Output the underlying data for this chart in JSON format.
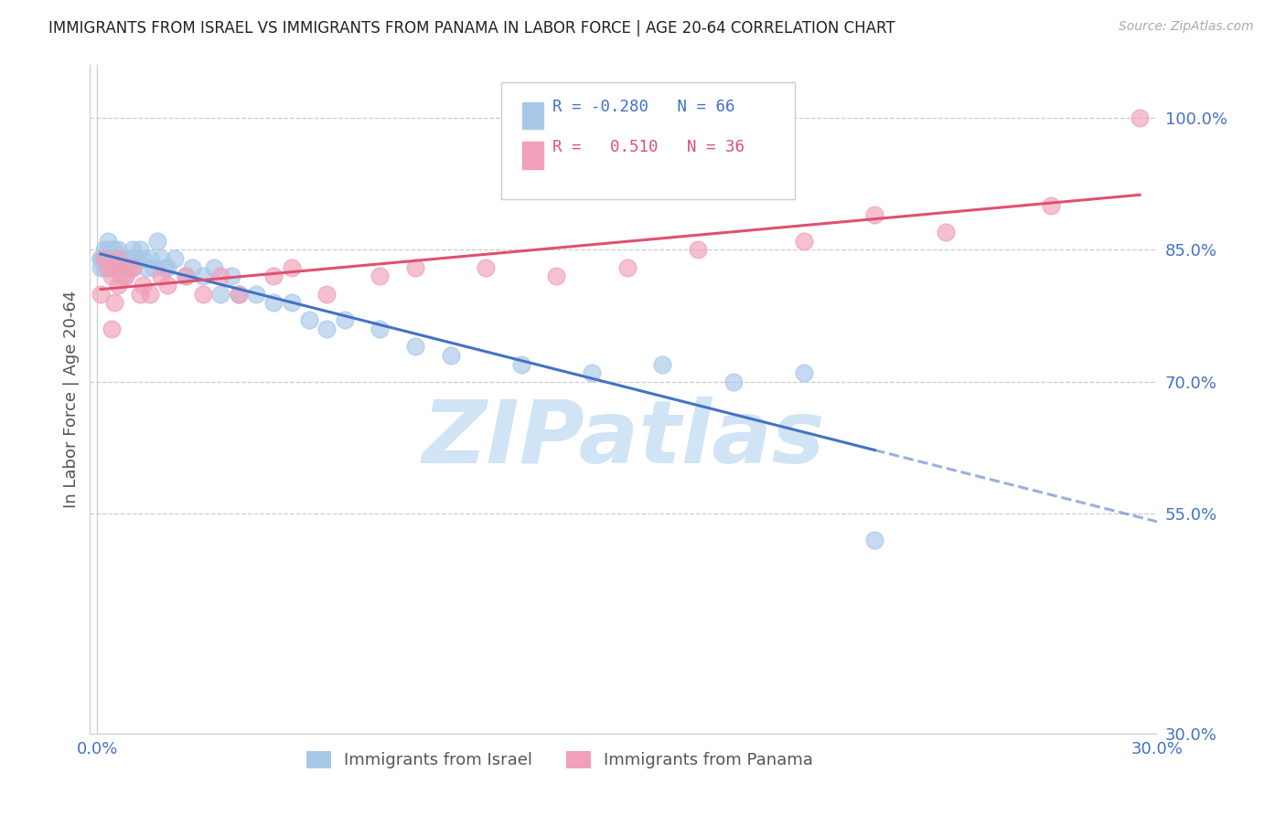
{
  "title": "IMMIGRANTS FROM ISRAEL VS IMMIGRANTS FROM PANAMA IN LABOR FORCE | AGE 20-64 CORRELATION CHART",
  "source": "Source: ZipAtlas.com",
  "ylabel": "In Labor Force | Age 20-64",
  "israel_R": -0.28,
  "israel_N": 66,
  "panama_R": 0.51,
  "panama_N": 36,
  "israel_color": "#a8c8e8",
  "panama_color": "#f0a0b8",
  "israel_line_color": "#4472c4",
  "panama_line_color": "#e05070",
  "watermark": "ZIPatlas",
  "watermark_color": "#d0e4f5",
  "xlim_min": -0.002,
  "xlim_max": 0.3,
  "ylim_min": 0.3,
  "ylim_max": 1.06,
  "ytick_vals": [
    0.3,
    0.55,
    0.7,
    0.85,
    1.0
  ],
  "ytick_labels": [
    "30.0%",
    "55.0%",
    "70.0%",
    "85.0%",
    "100.0%"
  ],
  "xtick_vals": [
    0.0,
    0.05,
    0.1,
    0.15,
    0.2,
    0.25,
    0.3
  ],
  "xtick_labels": [
    "0.0%",
    "",
    "",
    "",
    "",
    "",
    "30.0%"
  ],
  "israel_x": [
    0.001,
    0.001,
    0.001,
    0.002,
    0.002,
    0.002,
    0.003,
    0.003,
    0.003,
    0.003,
    0.004,
    0.004,
    0.004,
    0.004,
    0.004,
    0.005,
    0.005,
    0.005,
    0.005,
    0.005,
    0.006,
    0.006,
    0.006,
    0.007,
    0.007,
    0.007,
    0.007,
    0.008,
    0.008,
    0.009,
    0.01,
    0.01,
    0.01,
    0.011,
    0.012,
    0.013,
    0.014,
    0.015,
    0.016,
    0.017,
    0.018,
    0.019,
    0.02,
    0.022,
    0.025,
    0.027,
    0.03,
    0.033,
    0.035,
    0.038,
    0.04,
    0.045,
    0.05,
    0.055,
    0.06,
    0.065,
    0.07,
    0.08,
    0.09,
    0.1,
    0.12,
    0.14,
    0.16,
    0.18,
    0.2,
    0.22
  ],
  "israel_y": [
    0.84,
    0.84,
    0.83,
    0.85,
    0.84,
    0.83,
    0.85,
    0.84,
    0.83,
    0.86,
    0.84,
    0.84,
    0.83,
    0.85,
    0.83,
    0.85,
    0.84,
    0.84,
    0.83,
    0.83,
    0.85,
    0.84,
    0.83,
    0.84,
    0.84,
    0.83,
    0.84,
    0.83,
    0.82,
    0.84,
    0.85,
    0.84,
    0.83,
    0.84,
    0.85,
    0.84,
    0.83,
    0.84,
    0.83,
    0.86,
    0.84,
    0.83,
    0.83,
    0.84,
    0.82,
    0.83,
    0.82,
    0.83,
    0.8,
    0.82,
    0.8,
    0.8,
    0.79,
    0.79,
    0.77,
    0.76,
    0.77,
    0.76,
    0.74,
    0.73,
    0.72,
    0.71,
    0.72,
    0.7,
    0.71,
    0.52
  ],
  "panama_x": [
    0.001,
    0.002,
    0.003,
    0.004,
    0.004,
    0.005,
    0.005,
    0.006,
    0.006,
    0.007,
    0.008,
    0.009,
    0.01,
    0.012,
    0.013,
    0.015,
    0.018,
    0.02,
    0.025,
    0.03,
    0.035,
    0.04,
    0.05,
    0.055,
    0.065,
    0.08,
    0.09,
    0.11,
    0.13,
    0.15,
    0.17,
    0.2,
    0.22,
    0.24,
    0.27,
    0.295
  ],
  "panama_y": [
    0.8,
    0.84,
    0.83,
    0.82,
    0.76,
    0.83,
    0.79,
    0.84,
    0.81,
    0.82,
    0.82,
    0.83,
    0.83,
    0.8,
    0.81,
    0.8,
    0.82,
    0.81,
    0.82,
    0.8,
    0.82,
    0.8,
    0.82,
    0.83,
    0.8,
    0.82,
    0.83,
    0.83,
    0.82,
    0.83,
    0.85,
    0.86,
    0.89,
    0.87,
    0.9,
    1.0
  ],
  "legend_israel_label": "R = -0.280   N = 66",
  "legend_panama_label": "R =   0.510   N = 36",
  "bottom_label_israel": "Immigrants from Israel",
  "bottom_label_panama": "Immigrants from Panama"
}
